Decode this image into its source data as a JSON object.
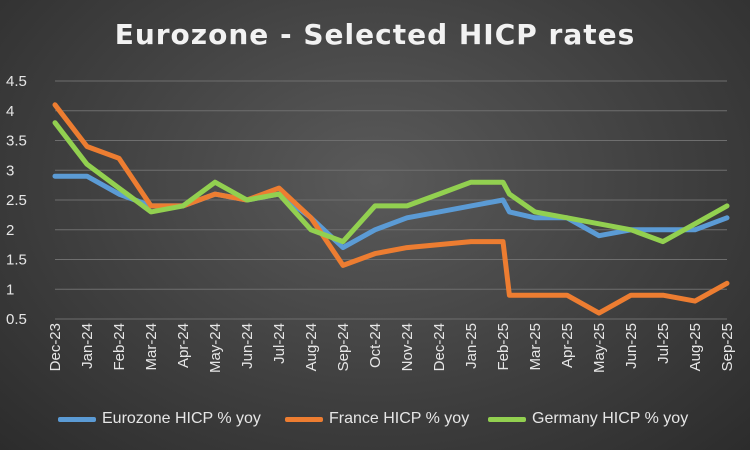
{
  "chart_data": {
    "type": "line",
    "title": "Eurozone - Selected HICP rates",
    "xlabel": "",
    "ylabel": "",
    "ylim": [
      0.5,
      4.5
    ],
    "yticks": [
      "0.5",
      "1",
      "1.5",
      "2",
      "2.5",
      "3",
      "3.5",
      "4",
      "4.5"
    ],
    "grid": true,
    "legend_position": "bottom",
    "categories": [
      "Dec-23",
      "Jan-24",
      "Feb-24",
      "Mar-24",
      "Apr-24",
      "May-24",
      "Jun-24",
      "Jul-24",
      "Aug-24",
      "Sep-24",
      "Oct-24",
      "Nov-24",
      "Dec-24",
      "Jan-25",
      "Feb-25",
      "Mar-25",
      "Apr-25",
      "May-25",
      "Jun-25",
      "Jul-25",
      "Aug-25",
      "Sep-25"
    ],
    "series": [
      {
        "name": "Eurozone HICP % yoy",
        "color": "#5b9bd5",
        "x": [
          0,
          1,
          2,
          3,
          4,
          5,
          6,
          7,
          8,
          9,
          10,
          11,
          12,
          13,
          14,
          14.2,
          15,
          16,
          17,
          18,
          19,
          20,
          21
        ],
        "values": [
          2.9,
          2.9,
          2.6,
          2.4,
          2.4,
          2.6,
          2.5,
          2.6,
          2.2,
          1.7,
          2.0,
          2.2,
          2.3,
          2.4,
          2.5,
          2.3,
          2.2,
          2.2,
          1.9,
          2.0,
          2.0,
          2.0,
          2.2
        ]
      },
      {
        "name": "France HICP % yoy",
        "color": "#ed7d31",
        "x": [
          0,
          1,
          2,
          3,
          4,
          5,
          6,
          7,
          8,
          9,
          10,
          11,
          12,
          13,
          14,
          14.2,
          15,
          16,
          17,
          18,
          19,
          20,
          21
        ],
        "values": [
          4.1,
          3.4,
          3.2,
          2.4,
          2.4,
          2.6,
          2.5,
          2.7,
          2.2,
          1.4,
          1.6,
          1.7,
          1.75,
          1.8,
          1.8,
          0.9,
          0.9,
          0.9,
          0.6,
          0.9,
          0.9,
          0.8,
          1.1
        ]
      },
      {
        "name": "Germany HICP % yoy",
        "color": "#92d050",
        "x": [
          0,
          1,
          2,
          3,
          4,
          5,
          6,
          7,
          8,
          9,
          10,
          11,
          12,
          13,
          14,
          14.2,
          15,
          16,
          17,
          18,
          19,
          20,
          21
        ],
        "values": [
          3.8,
          3.1,
          2.7,
          2.3,
          2.4,
          2.8,
          2.5,
          2.6,
          2.0,
          1.8,
          2.4,
          2.4,
          2.6,
          2.8,
          2.8,
          2.6,
          2.3,
          2.2,
          2.1,
          2.0,
          1.8,
          2.1,
          2.4
        ]
      }
    ]
  }
}
